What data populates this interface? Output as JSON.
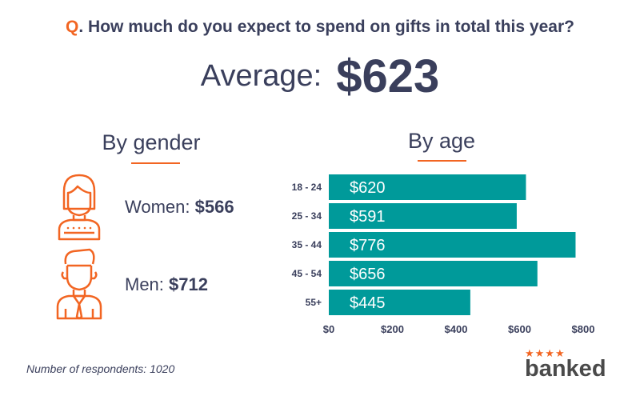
{
  "question": {
    "prefix": "Q",
    "text": ". How much do you expect to spend on gifts in total this year?"
  },
  "average": {
    "label": "Average:",
    "value": "$623"
  },
  "gender": {
    "title": "By gender",
    "women": {
      "label": "Women: ",
      "value": "$566"
    },
    "men": {
      "label": "Men: ",
      "value": "$712"
    }
  },
  "age": {
    "title": "By age"
  },
  "footnote": "Number of respondents: 1020",
  "brand": {
    "stars": "★★★★",
    "name": "banked"
  },
  "colors": {
    "accent": "#f26522",
    "bar": "#009a9a",
    "text": "#3a3f5c"
  },
  "chart_data": {
    "type": "bar",
    "orientation": "horizontal",
    "categories": [
      "18 - 24",
      "25 - 34",
      "35 - 44",
      "45 - 54",
      "55+"
    ],
    "values": [
      620,
      591,
      776,
      656,
      445
    ],
    "value_labels": [
      "$620",
      "$591",
      "$776",
      "$656",
      "$445"
    ],
    "xlim": [
      0,
      800
    ],
    "xticks": [
      0,
      200,
      400,
      600,
      800
    ],
    "xtick_labels": [
      "$0",
      "$200",
      "$400",
      "$600",
      "$800"
    ],
    "title": "By age",
    "grid": false
  }
}
